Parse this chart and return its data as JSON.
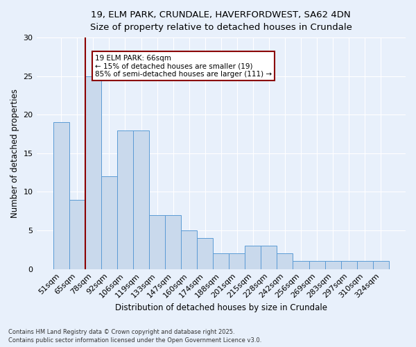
{
  "title_line1": "19, ELM PARK, CRUNDALE, HAVERFORDWEST, SA62 4DN",
  "title_line2": "Size of property relative to detached houses in Crundale",
  "xlabel": "Distribution of detached houses by size in Crundale",
  "ylabel": "Number of detached properties",
  "categories": [
    "51sqm",
    "65sqm",
    "78sqm",
    "92sqm",
    "106sqm",
    "119sqm",
    "133sqm",
    "147sqm",
    "160sqm",
    "174sqm",
    "188sqm",
    "201sqm",
    "215sqm",
    "228sqm",
    "242sqm",
    "256sqm",
    "269sqm",
    "283sqm",
    "297sqm",
    "310sqm",
    "324sqm"
  ],
  "values": [
    19,
    9,
    25,
    12,
    18,
    18,
    7,
    7,
    5,
    4,
    2,
    2,
    3,
    3,
    2,
    1,
    1,
    1,
    1,
    1,
    1
  ],
  "bar_color": "#c9d9ec",
  "bar_edge_color": "#5b9bd5",
  "vline_x_idx": 1,
  "vline_color": "#8b0000",
  "annotation_title": "19 ELM PARK: 66sqm",
  "annotation_line2": "← 15% of detached houses are smaller (19)",
  "annotation_line3": "85% of semi-detached houses are larger (111) →",
  "annotation_box_color": "#ffffff",
  "annotation_box_edge": "#8b0000",
  "ylim": [
    0,
    30
  ],
  "yticks": [
    0,
    5,
    10,
    15,
    20,
    25,
    30
  ],
  "footer_line1": "Contains HM Land Registry data © Crown copyright and database right 2025.",
  "footer_line2": "Contains public sector information licensed under the Open Government Licence v3.0.",
  "bg_color": "#e8f0fb",
  "grid_color": "#ffffff"
}
